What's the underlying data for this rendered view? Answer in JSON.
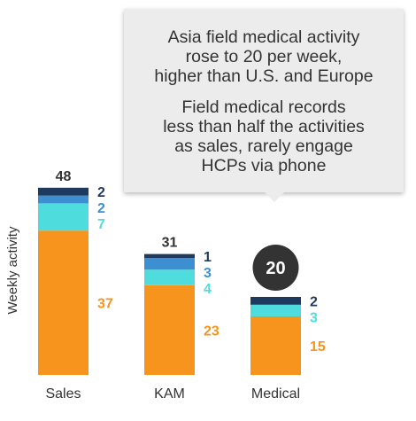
{
  "colors": {
    "navy": "#1f3a5f",
    "blue": "#3d8fd1",
    "cyan": "#4fdcdc",
    "orange": "#f7941d",
    "text": "#333333",
    "badge": "#333333"
  },
  "callout": {
    "line1": "Asia field medical activity",
    "line2": "rose to 20 per week,",
    "line3": "higher than U.S. and Europe",
    "line4": "Field medical records",
    "line5": "less than half the activities",
    "line6": "as sales, rarely engage",
    "line7": "HCPs via phone"
  },
  "chart_data": {
    "type": "bar",
    "stacked": true,
    "ylabel": "Weekly activity",
    "categories": [
      "Sales",
      "KAM",
      "Medical"
    ],
    "totals": [
      48,
      31,
      20
    ],
    "highlight_total": "Medical",
    "series": [
      {
        "color": "orange",
        "values": [
          37,
          23,
          15
        ]
      },
      {
        "color": "cyan",
        "values": [
          7,
          4,
          3
        ]
      },
      {
        "color": "blue",
        "values": [
          2,
          3,
          0
        ]
      },
      {
        "color": "navy",
        "values": [
          2,
          1,
          2
        ]
      }
    ]
  }
}
